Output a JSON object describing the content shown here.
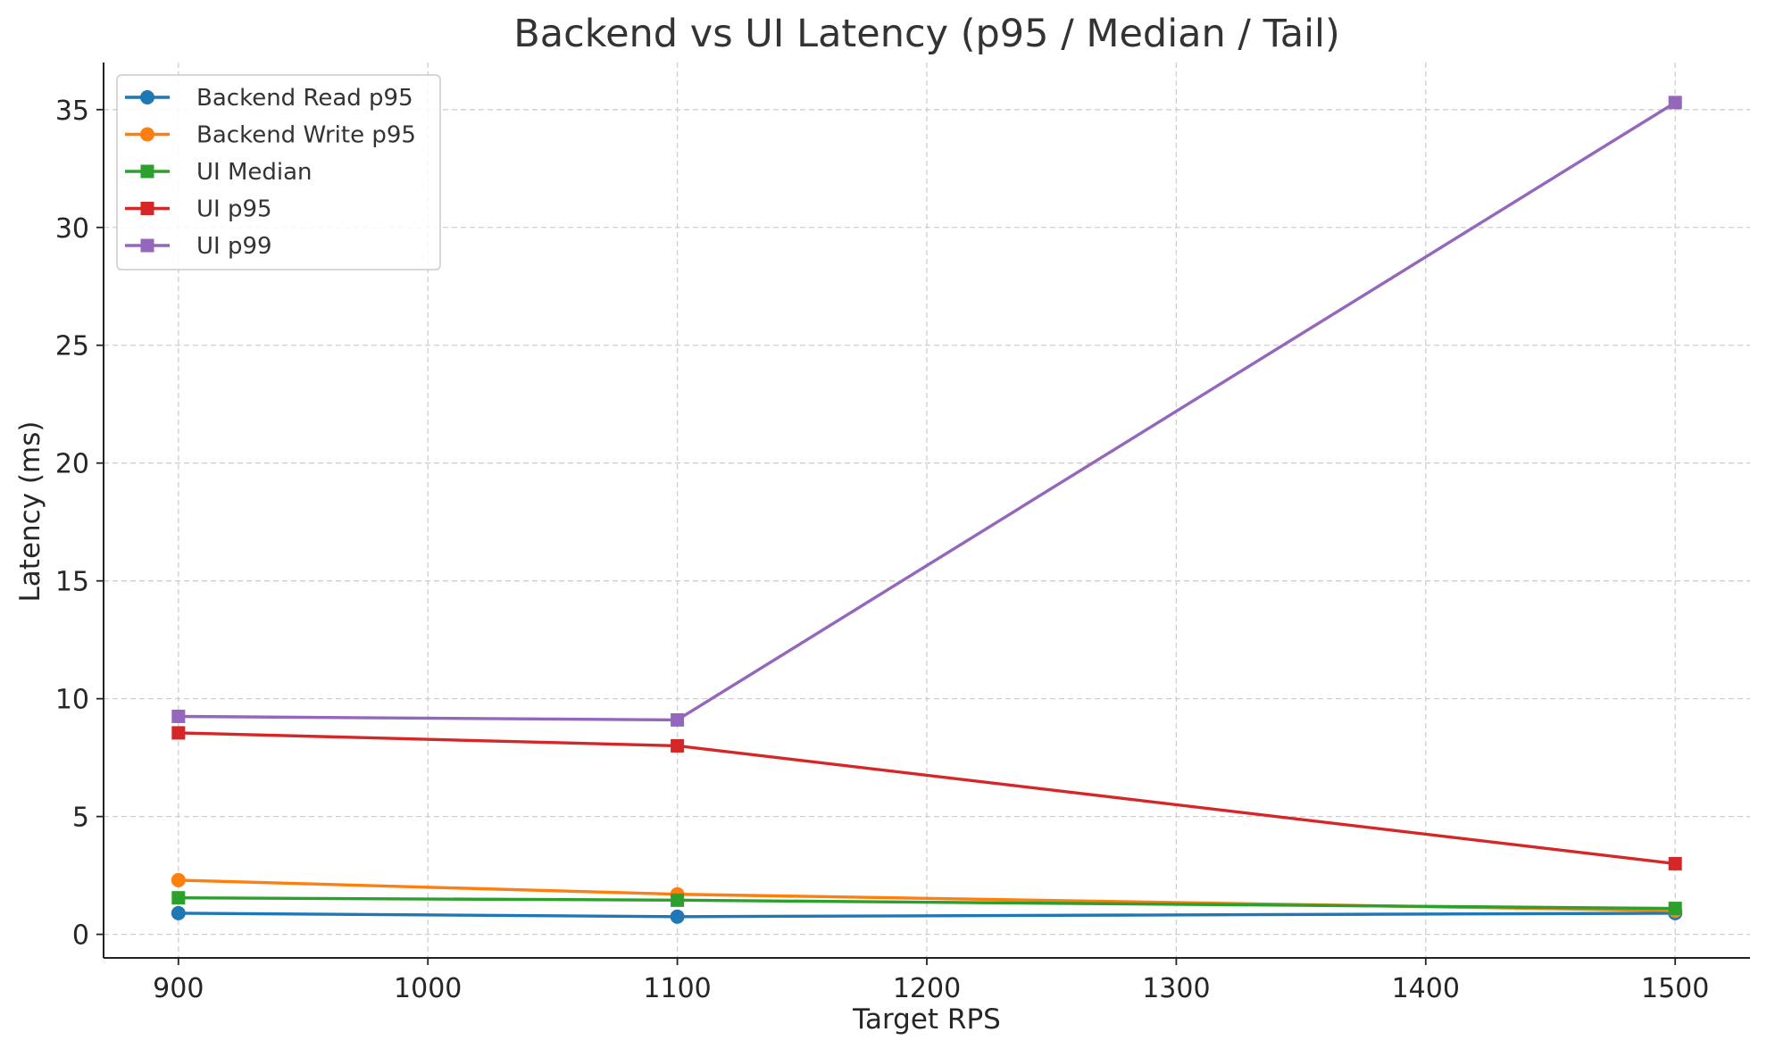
{
  "chart_data": {
    "type": "line",
    "title": "Backend vs UI Latency (p95 / Median / Tail)",
    "xlabel": "Target RPS",
    "ylabel": "Latency (ms)",
    "x": [
      900,
      1100,
      1500
    ],
    "xlim": [
      870,
      1530
    ],
    "ylim": [
      -1,
      37
    ],
    "xticks": [
      900,
      1000,
      1100,
      1200,
      1300,
      1400,
      1500
    ],
    "yticks": [
      0,
      5,
      10,
      15,
      20,
      25,
      30,
      35
    ],
    "grid": true,
    "legend_position": "top-left",
    "series": [
      {
        "name": "Backend Read p95",
        "color": "#1f77b4",
        "marker": "circle",
        "values": [
          0.9,
          0.75,
          0.9
        ]
      },
      {
        "name": "Backend Write p95",
        "color": "#ff7f0e",
        "marker": "circle",
        "values": [
          2.3,
          1.7,
          1.0
        ]
      },
      {
        "name": "UI Median",
        "color": "#2ca02c",
        "marker": "square",
        "values": [
          1.55,
          1.45,
          1.1
        ]
      },
      {
        "name": "UI p95",
        "color": "#d62728",
        "marker": "square",
        "values": [
          8.55,
          8.0,
          3.0
        ]
      },
      {
        "name": "UI p99",
        "color": "#9467bd",
        "marker": "square",
        "values": [
          9.25,
          9.1,
          35.3
        ]
      }
    ]
  }
}
